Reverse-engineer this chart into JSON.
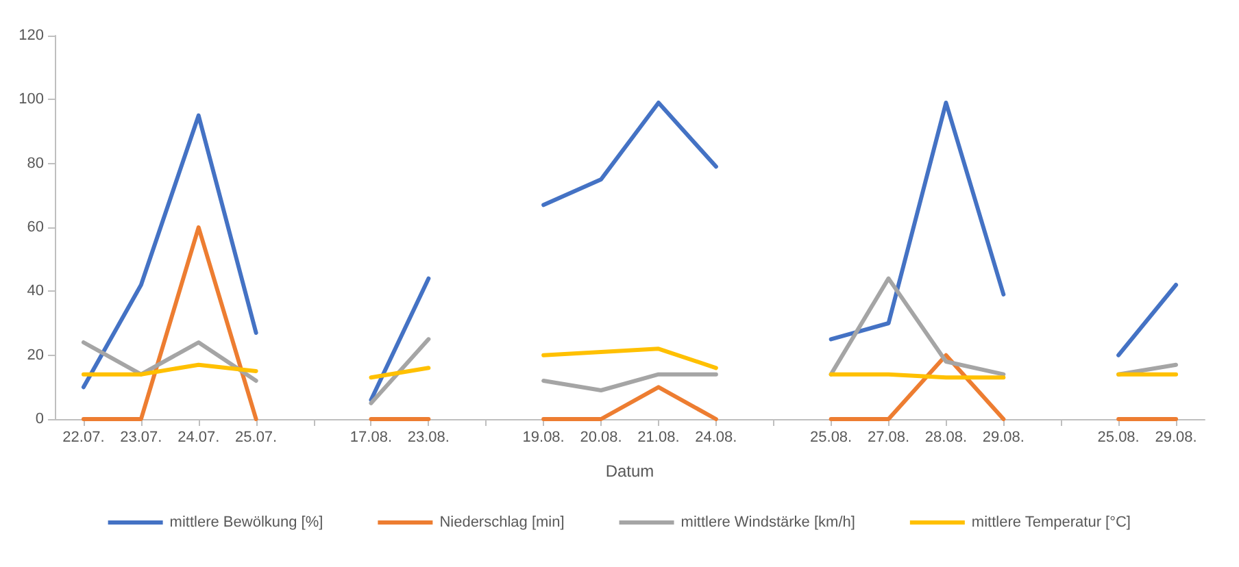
{
  "chart_data": {
    "type": "line",
    "xlabel": "Datum",
    "categories": [
      "22.07.",
      "23.07.",
      "24.07.",
      "25.07.",
      null,
      "17.08.",
      "23.08.",
      null,
      "19.08.",
      "20.08.",
      "21.08.",
      "24.08.",
      null,
      "25.08.",
      "27.08.",
      "28.08.",
      "29.08.",
      null,
      "25.08.",
      "29.08."
    ],
    "series": [
      {
        "name": "mittlere Bewölkung [%]",
        "color": "#4472c4",
        "values": [
          10,
          42,
          95,
          27,
          null,
          6,
          44,
          null,
          67,
          75,
          99,
          79,
          null,
          25,
          30,
          99,
          39,
          null,
          20,
          42
        ]
      },
      {
        "name": "Niederschlag [min]",
        "color": "#ed7d31",
        "values": [
          0,
          0,
          60,
          0,
          null,
          0,
          0,
          null,
          0,
          0,
          10,
          0,
          null,
          0,
          0,
          20,
          0,
          null,
          0,
          0
        ]
      },
      {
        "name": "mittlere Windstärke [km/h]",
        "color": "#a5a5a5",
        "values": [
          24,
          14,
          24,
          12,
          null,
          5,
          25,
          null,
          12,
          9,
          14,
          14,
          null,
          14,
          44,
          18,
          14,
          null,
          14,
          17
        ]
      },
      {
        "name": "mittlere Temperatur [°C]",
        "color": "#ffc000",
        "values": [
          14,
          14,
          17,
          15,
          null,
          13,
          16,
          null,
          20,
          21,
          22,
          16,
          null,
          14,
          14,
          13,
          13,
          null,
          14,
          14
        ]
      }
    ],
    "ylim": [
      0,
      120
    ],
    "yticks": [
      0,
      20,
      40,
      60,
      80,
      100,
      120
    ],
    "grid": false,
    "legend": "bottom",
    "marker": "none",
    "line_style": "solid"
  }
}
